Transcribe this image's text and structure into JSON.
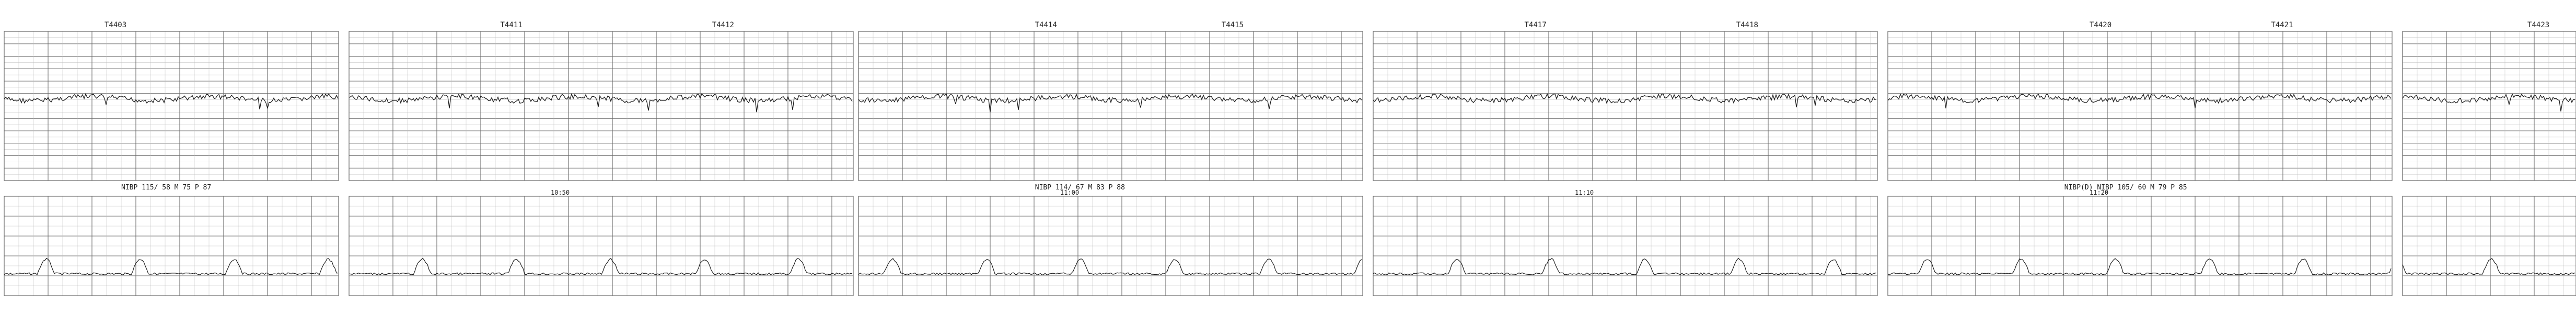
{
  "header_labels": [
    {
      "text": "T4403",
      "panel": 0,
      "pos": 0.3
    },
    {
      "text": "T4411",
      "panel": 1,
      "pos": 0.3
    },
    {
      "text": "T4412",
      "panel": 1,
      "pos": 0.72
    },
    {
      "text": "T4414",
      "panel": 2,
      "pos": 0.35
    },
    {
      "text": "T4415",
      "panel": 2,
      "pos": 0.72
    },
    {
      "text": "T4417",
      "panel": 3,
      "pos": 0.3
    },
    {
      "text": "T4418",
      "panel": 3,
      "pos": 0.72
    },
    {
      "text": "T4420",
      "panel": 4,
      "pos": 0.4
    },
    {
      "text": "T4421",
      "panel": 4,
      "pos": 0.76
    },
    {
      "text": "T4423",
      "panel": 5,
      "pos": 0.72
    }
  ],
  "nibp_annotations": [
    {
      "text": "NIBP 115/ 58 M 75 P 87",
      "panel": 0
    },
    {
      "text": "NIBP 114/ 67 M 83 P 88",
      "panel": 2
    },
    {
      "text": "NIBP(D)   NIBP 105/ 60 M 79 P 85",
      "panel": 4
    }
  ],
  "time_marks": [
    {
      "text": "10:50",
      "panel": 1
    },
    {
      "text": "11:00",
      "panel": 2
    },
    {
      "text": "11:10",
      "panel": 3
    },
    {
      "text": "11:20",
      "panel": 4
    }
  ],
  "colors": {
    "paper": "#ffffff",
    "grid_major": "#6a6a6a",
    "grid_minor": "#b9b9b9",
    "trace": "#1e1e1e"
  }
}
